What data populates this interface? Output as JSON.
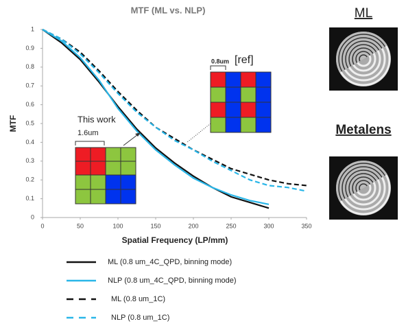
{
  "chart_data": {
    "type": "line",
    "title": "MTF (ML vs. NLP)",
    "x_label": "Spatial Frequency (LP/mm)",
    "y_label": "MTF",
    "x": [
      0,
      25,
      50,
      75,
      100,
      125,
      150,
      175,
      200,
      225,
      250,
      275,
      300,
      325,
      350
    ],
    "xlim": [
      0,
      350
    ],
    "xticks": [
      0,
      50,
      100,
      150,
      200,
      250,
      300,
      350
    ],
    "ylim": [
      0,
      1
    ],
    "yticks": [
      0,
      0.1,
      0.2,
      0.3,
      0.4,
      0.5,
      0.6,
      0.7,
      0.8,
      0.9,
      1
    ],
    "series": [
      {
        "name": "ML (0.8 um_4C_QPD, binning mode)",
        "color": "#111111",
        "dash": false,
        "values": [
          1,
          0.93,
          0.84,
          0.72,
          0.59,
          0.47,
          0.37,
          0.29,
          0.22,
          0.16,
          0.11,
          0.08,
          0.05,
          null,
          null
        ]
      },
      {
        "name": "NLP (0.8 um_4C_QPD, binning mode)",
        "color": "#29b6e8",
        "dash": false,
        "values": [
          1,
          0.94,
          0.85,
          0.73,
          0.58,
          0.46,
          0.36,
          0.28,
          0.21,
          0.16,
          0.12,
          0.09,
          0.07,
          null,
          null
        ]
      },
      {
        "name": "ML (0.8 um_1C)",
        "color": "#111111",
        "dash": true,
        "values": [
          1,
          0.95,
          0.88,
          0.78,
          0.67,
          0.57,
          0.48,
          0.42,
          0.36,
          0.31,
          0.26,
          0.23,
          0.2,
          0.18,
          0.17
        ]
      },
      {
        "name": "NLP (0.8 um_1C)",
        "color": "#29b6e8",
        "dash": true,
        "values": [
          1,
          0.95,
          0.87,
          0.77,
          0.66,
          0.56,
          0.48,
          0.41,
          0.36,
          0.3,
          0.25,
          0.2,
          0.17,
          0.16,
          0.14
        ]
      }
    ],
    "annotations": {
      "this_work": "This work",
      "pitch_large": "1.6um",
      "pitch_small": "0.8um",
      "ref": "[ref]"
    }
  },
  "side_panel": {
    "top_label": "ML",
    "bottom_label": "Metalens"
  }
}
